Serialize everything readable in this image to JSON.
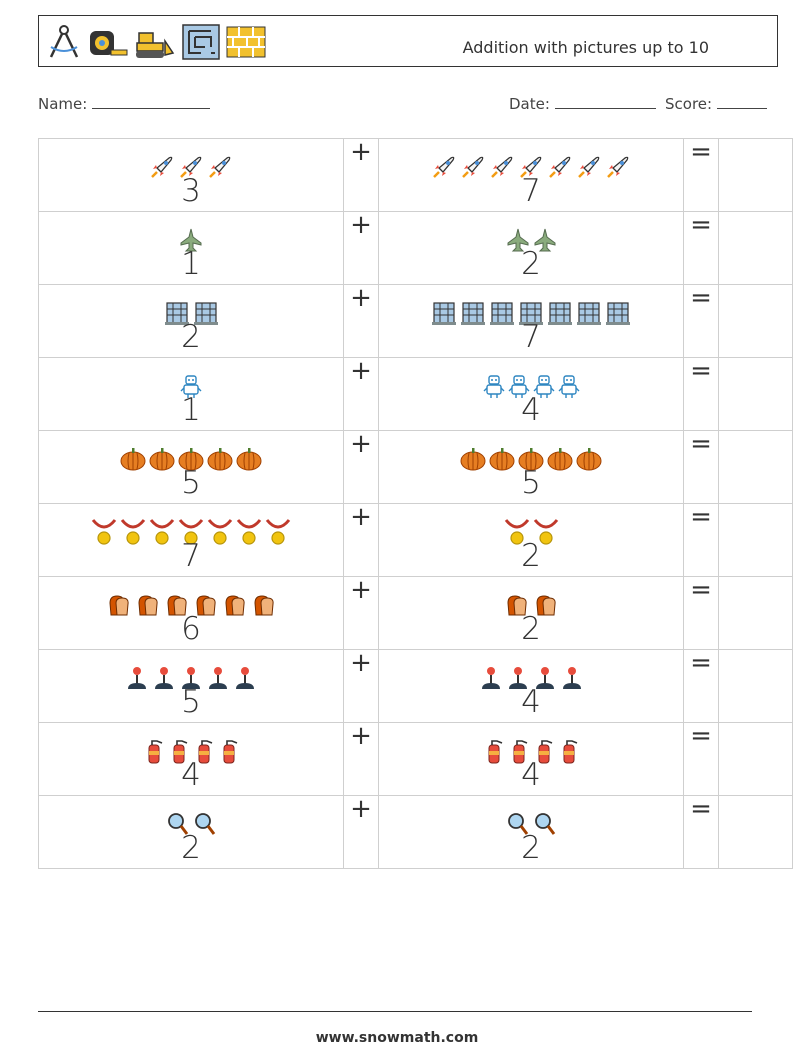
{
  "header": {
    "title": "Addition with pictures up to 10",
    "icons": [
      "compass-icon",
      "tape-measure-icon",
      "bulldozer-icon",
      "maze-icon",
      "brick-wall-icon"
    ]
  },
  "info": {
    "name_label": "Name:",
    "date_label": "Date:",
    "score_label": "Score:"
  },
  "operators": {
    "plus": "+",
    "equals": "="
  },
  "problems": [
    {
      "a": "3",
      "b": "7",
      "icon": "rocket-icon"
    },
    {
      "a": "1",
      "b": "2",
      "icon": "fighter-jet-icon"
    },
    {
      "a": "2",
      "b": "7",
      "icon": "building-icon"
    },
    {
      "a": "1",
      "b": "4",
      "icon": "robot-icon"
    },
    {
      "a": "5",
      "b": "5",
      "icon": "pumpkin-icon"
    },
    {
      "a": "7",
      "b": "2",
      "icon": "medal-icon"
    },
    {
      "a": "6",
      "b": "2",
      "icon": "toast-icon"
    },
    {
      "a": "5",
      "b": "4",
      "icon": "joystick-icon"
    },
    {
      "a": "4",
      "b": "4",
      "icon": "fire-extinguisher-icon"
    },
    {
      "a": "2",
      "b": "2",
      "icon": "magnifier-icon"
    }
  ],
  "footer": {
    "site": "www.snowmath.com"
  }
}
